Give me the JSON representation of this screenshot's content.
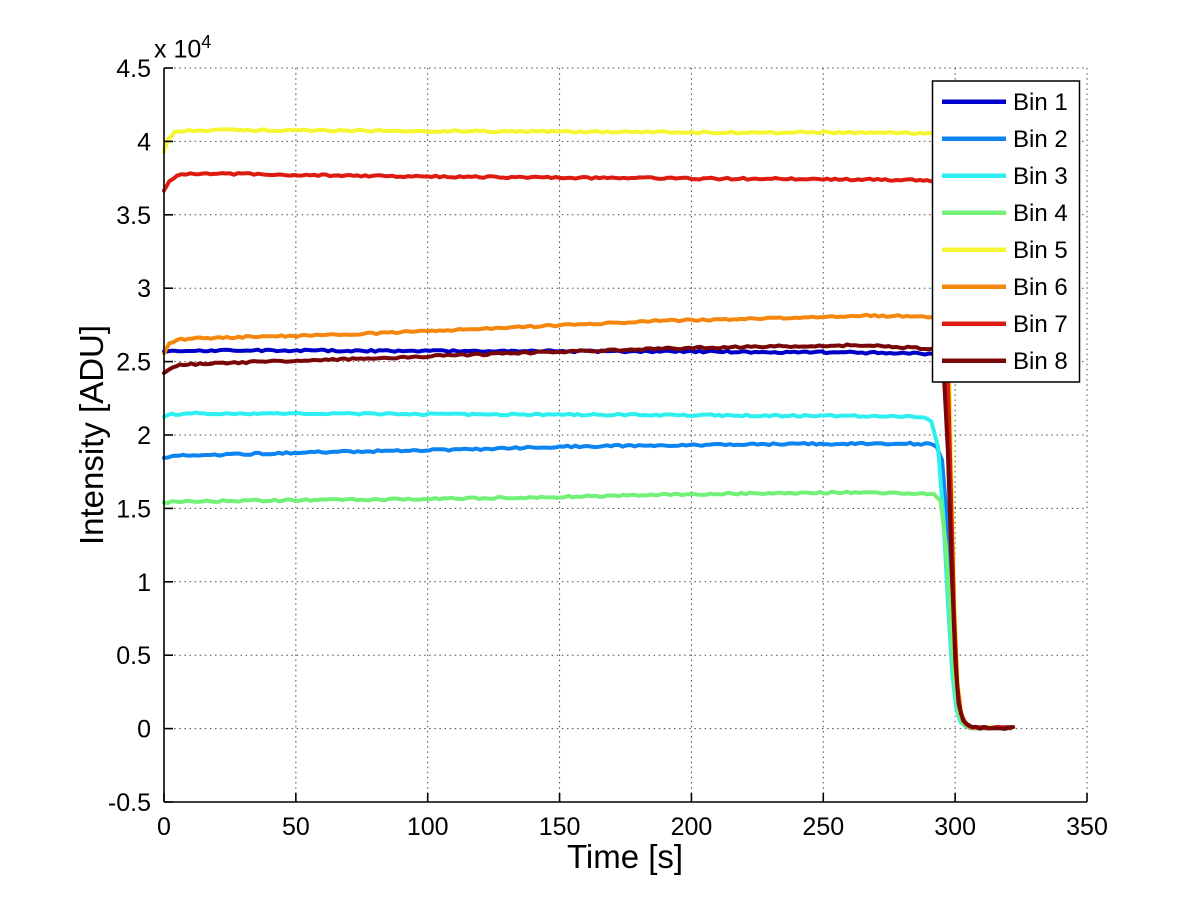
{
  "figure": {
    "background": "#ffffff"
  },
  "chart_data": {
    "type": "line",
    "title": "",
    "xlabel": "Time [s]",
    "ylabel": "Intensity [ADU]",
    "y_offset_prefix": "x 10",
    "y_offset_exponent": "4",
    "xlim": [
      0,
      350
    ],
    "ylim": [
      -5000,
      45000
    ],
    "xticks": [
      0,
      50,
      100,
      150,
      200,
      250,
      300,
      350
    ],
    "ytick_values": [
      -5000,
      0,
      5000,
      10000,
      15000,
      20000,
      25000,
      30000,
      35000,
      40000,
      45000
    ],
    "ytick_labels": [
      "-0.5",
      "0",
      "0.5",
      "1",
      "1.5",
      "2",
      "2.5",
      "3",
      "3.5",
      "4",
      "4.5"
    ],
    "grid": true,
    "grid_style": "dotted",
    "grid_color": "#4a4a4a",
    "axis_color": "#000000",
    "legend_position": "top-right",
    "series": [
      {
        "name": "Bin 1",
        "color": "#0000C8",
        "points": [
          [
            0,
            25650
          ],
          [
            4,
            25720
          ],
          [
            15,
            25760
          ],
          [
            40,
            25760
          ],
          [
            80,
            25730
          ],
          [
            120,
            25720
          ],
          [
            160,
            25700
          ],
          [
            200,
            25690
          ],
          [
            230,
            25650
          ],
          [
            260,
            25620
          ],
          [
            280,
            25570
          ],
          [
            290,
            25545
          ],
          [
            294,
            25520
          ],
          [
            296.5,
            23500
          ],
          [
            298,
            16000
          ],
          [
            299.5,
            7000
          ],
          [
            300.7,
            2500
          ],
          [
            302,
            900
          ],
          [
            303.8,
            280
          ],
          [
            306,
            90
          ],
          [
            309,
            55
          ],
          [
            321,
            50
          ]
        ]
      },
      {
        "name": "Bin 2",
        "color": "#0D84F0",
        "points": [
          [
            0,
            18480
          ],
          [
            3,
            18560
          ],
          [
            10,
            18610
          ],
          [
            30,
            18700
          ],
          [
            60,
            18830
          ],
          [
            90,
            18930
          ],
          [
            120,
            19030
          ],
          [
            150,
            19200
          ],
          [
            180,
            19290
          ],
          [
            210,
            19340
          ],
          [
            240,
            19390
          ],
          [
            265,
            19410
          ],
          [
            283,
            19410
          ],
          [
            290,
            19380
          ],
          [
            293,
            19250
          ],
          [
            295,
            18300
          ],
          [
            296.8,
            14500
          ],
          [
            298.3,
            8000
          ],
          [
            299.8,
            3000
          ],
          [
            301.2,
            1100
          ],
          [
            303,
            350
          ],
          [
            305.5,
            110
          ],
          [
            308,
            55
          ],
          [
            321,
            50
          ]
        ]
      },
      {
        "name": "Bin 3",
        "color": "#2EEFF0",
        "points": [
          [
            0,
            21250
          ],
          [
            3,
            21400
          ],
          [
            12,
            21470
          ],
          [
            40,
            21470
          ],
          [
            80,
            21440
          ],
          [
            120,
            21410
          ],
          [
            160,
            21380
          ],
          [
            200,
            21350
          ],
          [
            240,
            21310
          ],
          [
            265,
            21290
          ],
          [
            283,
            21260
          ],
          [
            288,
            21200
          ],
          [
            291,
            20900
          ],
          [
            293.5,
            19200
          ],
          [
            295.5,
            14500
          ],
          [
            297.3,
            8500
          ],
          [
            298.9,
            3800
          ],
          [
            300.4,
            1400
          ],
          [
            302,
            450
          ],
          [
            304.2,
            140
          ],
          [
            307,
            60
          ],
          [
            321,
            50
          ]
        ]
      },
      {
        "name": "Bin 4",
        "color": "#73F078",
        "points": [
          [
            0,
            15350
          ],
          [
            4,
            15460
          ],
          [
            30,
            15530
          ],
          [
            60,
            15570
          ],
          [
            100,
            15650
          ],
          [
            140,
            15750
          ],
          [
            180,
            15900
          ],
          [
            210,
            16000
          ],
          [
            240,
            16060
          ],
          [
            262,
            16090
          ],
          [
            278,
            16060
          ],
          [
            288,
            16030
          ],
          [
            292,
            15980
          ],
          [
            294.5,
            15500
          ],
          [
            296.5,
            12500
          ],
          [
            298,
            8000
          ],
          [
            299.6,
            3500
          ],
          [
            301,
            1300
          ],
          [
            302.6,
            420
          ],
          [
            304.8,
            130
          ],
          [
            307.5,
            60
          ],
          [
            321,
            50
          ]
        ]
      },
      {
        "name": "Bin 5",
        "color": "#F5F532",
        "points": [
          [
            0,
            39300
          ],
          [
            1.5,
            40150
          ],
          [
            4,
            40620
          ],
          [
            8,
            40730
          ],
          [
            20,
            40770
          ],
          [
            50,
            40755
          ],
          [
            100,
            40705
          ],
          [
            150,
            40665
          ],
          [
            200,
            40625
          ],
          [
            250,
            40600
          ],
          [
            275,
            40580
          ],
          [
            288,
            40560
          ],
          [
            293,
            40520
          ],
          [
            295.5,
            39500
          ],
          [
            297,
            31000
          ],
          [
            298.4,
            19000
          ],
          [
            299.7,
            8500
          ],
          [
            300.9,
            3200
          ],
          [
            302.3,
            1100
          ],
          [
            304,
            330
          ],
          [
            306.5,
            100
          ],
          [
            309.5,
            55
          ],
          [
            320,
            50
          ]
        ]
      },
      {
        "name": "Bin 6",
        "color": "#F5870F",
        "points": [
          [
            0,
            25600
          ],
          [
            2,
            26250
          ],
          [
            5,
            26500
          ],
          [
            15,
            26610
          ],
          [
            40,
            26710
          ],
          [
            70,
            26860
          ],
          [
            100,
            27060
          ],
          [
            130,
            27310
          ],
          [
            160,
            27560
          ],
          [
            185,
            27760
          ],
          [
            210,
            27860
          ],
          [
            235,
            27960
          ],
          [
            255,
            28060
          ],
          [
            268,
            28130
          ],
          [
            280,
            28090
          ],
          [
            288,
            28030
          ],
          [
            293,
            27950
          ],
          [
            295.8,
            26500
          ],
          [
            297.4,
            19500
          ],
          [
            298.9,
            10500
          ],
          [
            300.2,
            4200
          ],
          [
            301.5,
            1500
          ],
          [
            303.3,
            480
          ],
          [
            305.8,
            130
          ],
          [
            308.5,
            60
          ],
          [
            321,
            50
          ]
        ]
      },
      {
        "name": "Bin 7",
        "color": "#DE1B10",
        "points": [
          [
            0,
            36700
          ],
          [
            2,
            37350
          ],
          [
            5,
            37680
          ],
          [
            10,
            37810
          ],
          [
            25,
            37790
          ],
          [
            60,
            37690
          ],
          [
            100,
            37610
          ],
          [
            150,
            37530
          ],
          [
            200,
            37470
          ],
          [
            250,
            37430
          ],
          [
            275,
            37390
          ],
          [
            288,
            37350
          ],
          [
            292,
            37300
          ],
          [
            294.8,
            36200
          ],
          [
            296.6,
            29000
          ],
          [
            298.2,
            17500
          ],
          [
            299.6,
            7800
          ],
          [
            300.8,
            2900
          ],
          [
            302.2,
            1000
          ],
          [
            304,
            320
          ],
          [
            306.5,
            100
          ],
          [
            309,
            55
          ],
          [
            321,
            50
          ]
        ]
      },
      {
        "name": "Bin 8",
        "color": "#7A0707",
        "points": [
          [
            0,
            24250
          ],
          [
            2,
            24520
          ],
          [
            6,
            24760
          ],
          [
            15,
            24860
          ],
          [
            40,
            25010
          ],
          [
            70,
            25160
          ],
          [
            100,
            25360
          ],
          [
            130,
            25560
          ],
          [
            155,
            25710
          ],
          [
            180,
            25830
          ],
          [
            205,
            25950
          ],
          [
            230,
            26030
          ],
          [
            250,
            26090
          ],
          [
            262,
            26110
          ],
          [
            272,
            26060
          ],
          [
            282,
            25960
          ],
          [
            290,
            25890
          ],
          [
            293,
            25830
          ],
          [
            295.5,
            24800
          ],
          [
            297.2,
            19000
          ],
          [
            298.8,
            10500
          ],
          [
            300.1,
            4500
          ],
          [
            301.3,
            1700
          ],
          [
            303,
            550
          ],
          [
            305.2,
            160
          ],
          [
            308,
            60
          ],
          [
            322,
            50
          ]
        ]
      }
    ]
  }
}
